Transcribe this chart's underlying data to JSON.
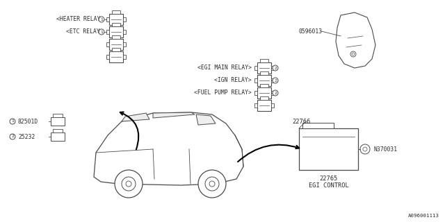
{
  "bg_color": "#ffffff",
  "line_color": "#4a4a4a",
  "text_color": "#2a2a2a",
  "diagram_id": "A096001113",
  "fs": 5.8,
  "labels": {
    "heater_relay": "<HEATER RELAY>",
    "etc_relay": "<ETC RELAY>",
    "egi_main_relay": "<EGI MAIN RELAY>",
    "ign_relay": "<IGN RELAY>",
    "fuel_pump_relay": "<FUEL PUMP RELAY>",
    "part1": "82501D",
    "part2": "25232",
    "part3": "22766",
    "part4": "22765",
    "part5": "0596013",
    "part6": "N370031",
    "egi_control": "EGI CONTROL"
  }
}
